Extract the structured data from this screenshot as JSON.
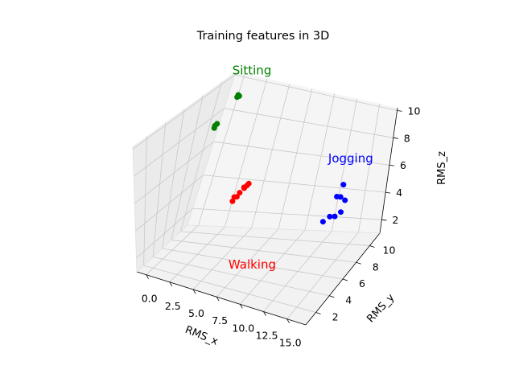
{
  "chart_data": {
    "type": "scatter",
    "title": "Training features in 3D",
    "xlabel": "RMS_x",
    "ylabel": "RMS_y",
    "zlabel": "RMS_z",
    "xlim": [
      -1,
      17
    ],
    "ylim": [
      0.5,
      11.5
    ],
    "zlim": [
      1,
      10.2
    ],
    "x_ticks": [
      0.0,
      2.5,
      5.0,
      7.5,
      10.0,
      12.5,
      15.0
    ],
    "x_tick_labels": [
      "0.0",
      "2.5",
      "5.0",
      "7.5",
      "10.0",
      "12.5",
      "15.0"
    ],
    "y_ticks": [
      2,
      4,
      6,
      8,
      10
    ],
    "y_tick_labels": [
      "2",
      "4",
      "6",
      "8",
      "10"
    ],
    "z_ticks": [
      2,
      4,
      6,
      8,
      10
    ],
    "z_tick_labels": [
      "2",
      "4",
      "6",
      "8",
      "10"
    ],
    "grid": true,
    "series": [
      {
        "name": "Sitting",
        "color": "#008000",
        "points": [
          [
            0.2,
            9.0,
            8.0
          ],
          [
            0.3,
            9.1,
            8.1
          ],
          [
            0.25,
            8.9,
            7.9
          ],
          [
            0.3,
            11.0,
            9.0
          ],
          [
            0.35,
            11.2,
            9.0
          ],
          [
            0.28,
            11.1,
            9.1
          ]
        ]
      },
      {
        "name": "Walking",
        "color": "#ff0000",
        "points": [
          [
            5.0,
            6.5,
            4.6
          ],
          [
            5.2,
            6.8,
            4.8
          ],
          [
            5.3,
            7.0,
            5.0
          ],
          [
            5.5,
            7.3,
            5.2
          ],
          [
            5.7,
            7.6,
            5.4
          ],
          [
            5.4,
            7.4,
            5.2
          ],
          [
            5.0,
            6.7,
            4.8
          ],
          [
            5.6,
            7.5,
            5.3
          ]
        ]
      },
      {
        "name": "Jogging",
        "color": "#0000ff",
        "points": [
          [
            14.0,
            7.0,
            4.0
          ],
          [
            14.8,
            7.5,
            4.2
          ],
          [
            15.0,
            7.8,
            5.4
          ],
          [
            15.2,
            8.2,
            5.0
          ],
          [
            14.9,
            7.4,
            5.6
          ],
          [
            15.1,
            7.9,
            6.2
          ],
          [
            15.3,
            7.6,
            4.5
          ],
          [
            14.5,
            7.2,
            4.3
          ]
        ]
      }
    ],
    "annotations": [
      {
        "text": "Sitting",
        "x": -0.5,
        "y": 10.5,
        "z": 10.5,
        "color": "#008000"
      },
      {
        "text": "Walking",
        "x": 5.5,
        "y": 6.5,
        "z": 0.2,
        "color": "#ff0000"
      },
      {
        "text": "Jogging",
        "x": 14.0,
        "y": 7.0,
        "z": 8.0,
        "color": "#0000ff"
      }
    ]
  }
}
